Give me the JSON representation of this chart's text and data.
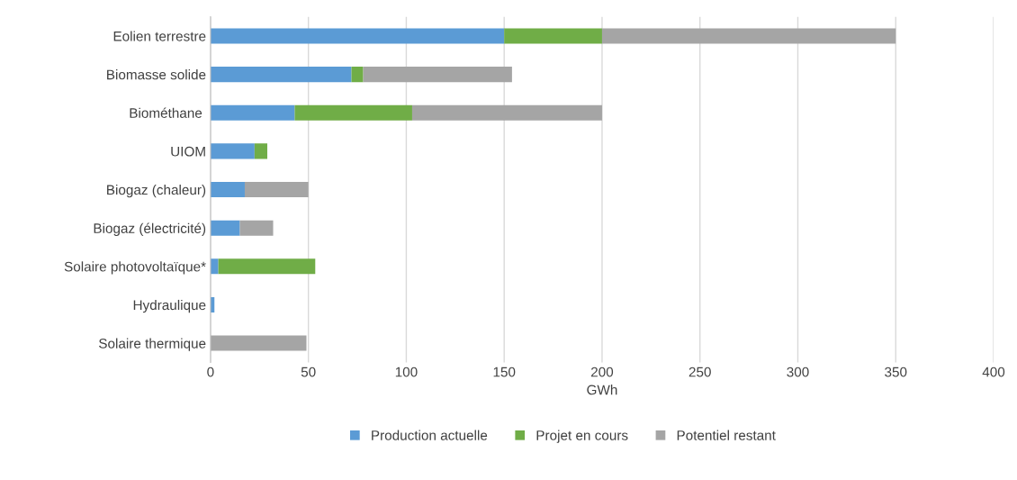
{
  "chart_data": {
    "type": "bar",
    "orientation": "horizontal",
    "stacked": true,
    "xlabel": "GWh",
    "categories": [
      "Eolien terrestre",
      "Biomasse solide",
      "Biométhane ",
      "UIOM",
      "Biogaz (chaleur)",
      "Biogaz (électricité)",
      "Solaire photovoltaïque*",
      "Hydraulique",
      "Solaire thermique"
    ],
    "series": [
      {
        "name": "Production actuelle",
        "color": "#5b9bd5",
        "values": [
          150,
          72,
          43,
          22.5,
          17.5,
          15,
          4,
          2,
          0
        ]
      },
      {
        "name": "Projet en cours",
        "color": "#70ad47",
        "values": [
          50,
          6,
          60,
          6.5,
          0,
          0,
          49.5,
          0,
          0
        ]
      },
      {
        "name": "Potentiel restant",
        "color": "#a5a5a5",
        "values": [
          150,
          76,
          97,
          0,
          32.5,
          17,
          0,
          0,
          49
        ]
      }
    ],
    "xlim": [
      0,
      400
    ],
    "xticks": [
      0,
      50,
      100,
      150,
      200,
      250,
      300,
      350,
      400
    ],
    "grid": "x",
    "legend": "bottom"
  }
}
